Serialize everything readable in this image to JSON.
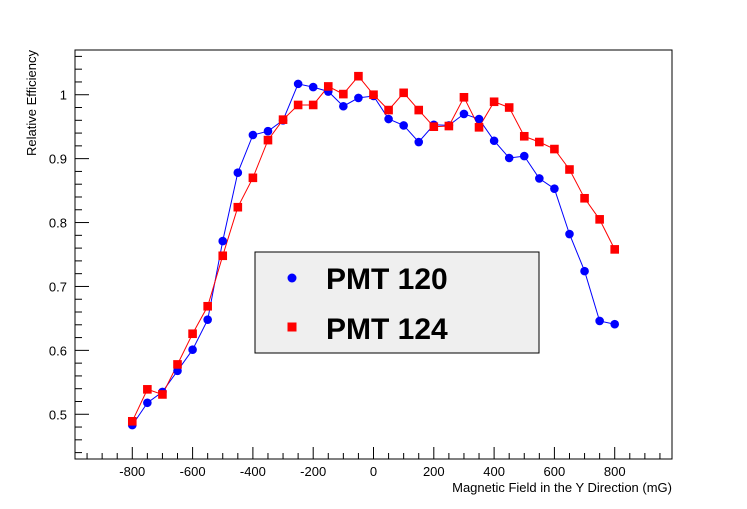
{
  "chart_data": {
    "type": "line",
    "title": "",
    "xlabel": "Magnetic Field in the Y Direction (mG)",
    "ylabel": "Relative Efficiency",
    "xlim": [
      -990,
      990
    ],
    "ylim": [
      0.43,
      1.07
    ],
    "xticks": [
      -800,
      -600,
      -400,
      -200,
      0,
      200,
      400,
      600,
      800
    ],
    "xtick_labels": [
      "-800",
      "-600",
      "-400",
      "-200",
      "0",
      "200",
      "400",
      "600",
      "800"
    ],
    "yticks": [
      0.5,
      0.6,
      0.7,
      0.8,
      0.9,
      1.0
    ],
    "ytick_labels": [
      "0.5",
      "0.6",
      "0.7",
      "0.8",
      "0.9",
      "1"
    ],
    "grid": false,
    "legend_position": "center",
    "x": [
      -800,
      -750,
      -700,
      -650,
      -600,
      -550,
      -500,
      -450,
      -400,
      -350,
      -300,
      -250,
      -200,
      -150,
      -100,
      -50,
      0,
      50,
      100,
      150,
      200,
      250,
      300,
      350,
      400,
      450,
      500,
      550,
      600,
      650,
      700,
      750,
      800
    ],
    "series": [
      {
        "name": "PMT 120",
        "marker": "circle",
        "color": "#0000ff",
        "values": [
          0.483,
          0.518,
          0.535,
          0.568,
          0.601,
          0.648,
          0.771,
          0.878,
          0.937,
          0.943,
          0.96,
          1.017,
          1.012,
          1.005,
          0.982,
          0.995,
          0.998,
          0.962,
          0.952,
          0.926,
          0.953,
          0.952,
          0.97,
          0.962,
          0.928,
          0.901,
          0.904,
          0.869,
          0.853,
          0.782,
          0.724,
          0.646,
          0.641
        ]
      },
      {
        "name": "PMT 124",
        "marker": "square",
        "color": "#ff0000",
        "values": [
          0.489,
          0.539,
          0.531,
          0.578,
          0.626,
          0.669,
          0.748,
          0.824,
          0.87,
          0.929,
          0.961,
          0.984,
          0.984,
          1.013,
          1.001,
          1.029,
          1.0,
          0.976,
          1.003,
          0.976,
          0.95,
          0.951,
          0.996,
          0.949,
          0.989,
          0.98,
          0.935,
          0.926,
          0.915,
          0.883,
          0.838,
          0.805,
          0.758
        ]
      }
    ]
  }
}
